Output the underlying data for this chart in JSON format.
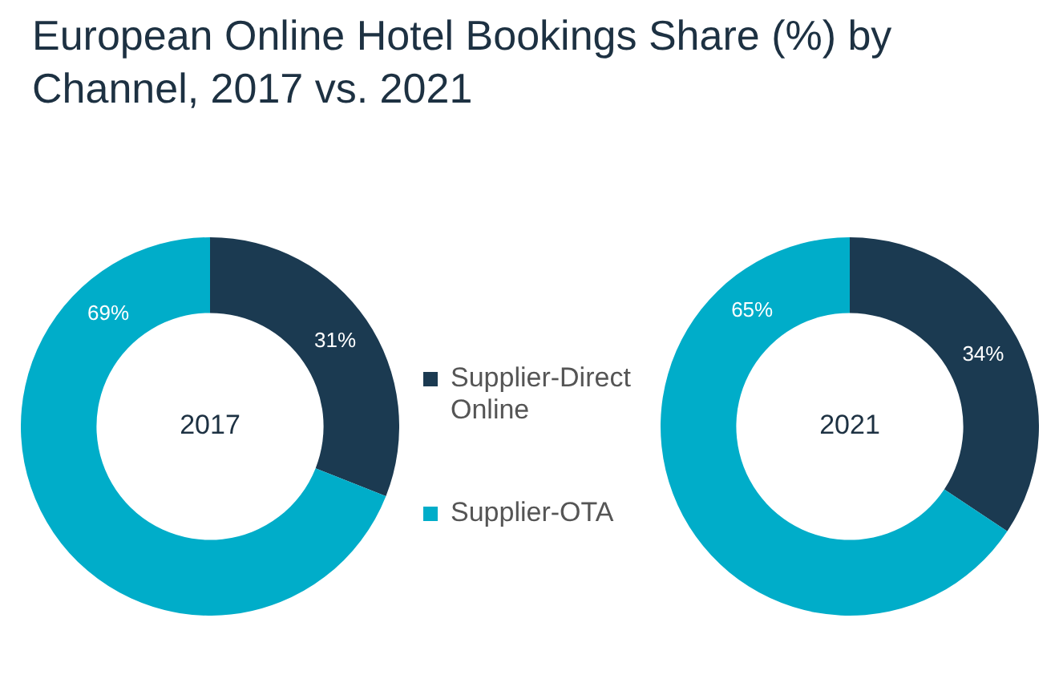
{
  "chart_data": [
    {
      "type": "donut",
      "title": "European Online Hotel Bookings Share (%) by Channel, 2017 vs. 2021",
      "categories": [
        "Supplier-Direct Online",
        "Supplier-OTA"
      ],
      "values": [
        31,
        69
      ],
      "colors": [
        "#1b3a51",
        "#00adc9"
      ],
      "value_labels": [
        "31%",
        "69%"
      ],
      "annotations": [
        "2017"
      ],
      "legend": "right"
    },
    {
      "type": "donut",
      "categories": [
        null,
        null
      ],
      "values": [
        34,
        65
      ],
      "colors": [
        "#1b3a51",
        "#00adc9"
      ],
      "value_labels": [
        "34%",
        "65%"
      ],
      "annotations": [
        "2021"
      ]
    }
  ]
}
